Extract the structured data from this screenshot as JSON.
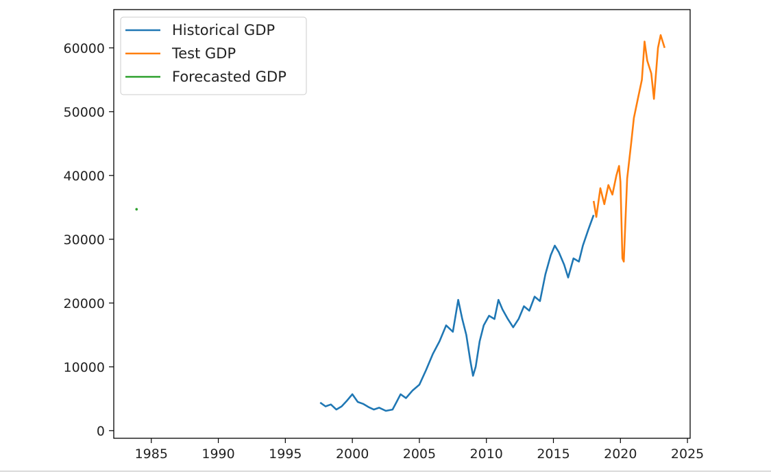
{
  "chart_data": {
    "type": "line",
    "title": "",
    "xlabel": "",
    "ylabel": "",
    "xlim": [
      1982.2,
      2025.2
    ],
    "ylim": [
      -1200,
      66000
    ],
    "xticks": [
      1985,
      1990,
      1995,
      2000,
      2005,
      2010,
      2015,
      2020,
      2025
    ],
    "yticks": [
      0,
      10000,
      20000,
      30000,
      40000,
      50000,
      60000
    ],
    "grid": false,
    "legend_position": "top-left",
    "series": [
      {
        "name": "Historical GDP",
        "color": "#1f77b4",
        "x": [
          1997.6,
          1998.0,
          1998.4,
          1998.8,
          1999.2,
          1999.6,
          2000.0,
          2000.4,
          2000.8,
          2001.2,
          2001.6,
          2002.0,
          2002.5,
          2003.0,
          2003.3,
          2003.6,
          2004.0,
          2004.5,
          2005.0,
          2005.5,
          2006.0,
          2006.5,
          2007.0,
          2007.5,
          2007.9,
          2008.2,
          2008.5,
          2008.8,
          2009.0,
          2009.2,
          2009.5,
          2009.8,
          2010.2,
          2010.6,
          2010.9,
          2011.2,
          2011.6,
          2012.0,
          2012.4,
          2012.8,
          2013.2,
          2013.6,
          2014.0,
          2014.4,
          2014.8,
          2015.1,
          2015.4,
          2015.8,
          2016.1,
          2016.5,
          2016.9,
          2017.2,
          2017.6,
          2018.0
        ],
        "values": [
          4400,
          3800,
          4100,
          3300,
          3800,
          4700,
          5700,
          4500,
          4200,
          3700,
          3300,
          3600,
          3100,
          3300,
          4500,
          5700,
          5100,
          6300,
          7200,
          9500,
          12000,
          14000,
          16500,
          15500,
          20500,
          17500,
          15000,
          11000,
          8600,
          10000,
          14000,
          16500,
          18000,
          17500,
          20500,
          19000,
          17500,
          16200,
          17500,
          19500,
          18800,
          21000,
          20300,
          24500,
          27500,
          29000,
          28000,
          26000,
          24000,
          27000,
          26500,
          29000,
          31500,
          33800
        ]
      },
      {
        "name": "Test GDP",
        "color": "#ff7f0e",
        "x": [
          2018.0,
          2018.2,
          2018.5,
          2018.8,
          2019.1,
          2019.4,
          2019.7,
          2019.9,
          2020.0,
          2020.15,
          2020.25,
          2020.5,
          2020.8,
          2021.0,
          2021.3,
          2021.6,
          2021.8,
          2022.0,
          2022.3,
          2022.5,
          2022.8,
          2023.0,
          2023.3
        ],
        "values": [
          36000,
          33500,
          38000,
          35500,
          38500,
          37000,
          40000,
          41500,
          39000,
          27000,
          26500,
          39500,
          45000,
          49000,
          52000,
          55000,
          61000,
          58000,
          56000,
          52000,
          60000,
          62000,
          60000
        ]
      },
      {
        "name": "Forecasted GDP",
        "color": "#2ca02c",
        "x": [
          1983.9
        ],
        "values": [
          34700
        ]
      }
    ]
  }
}
